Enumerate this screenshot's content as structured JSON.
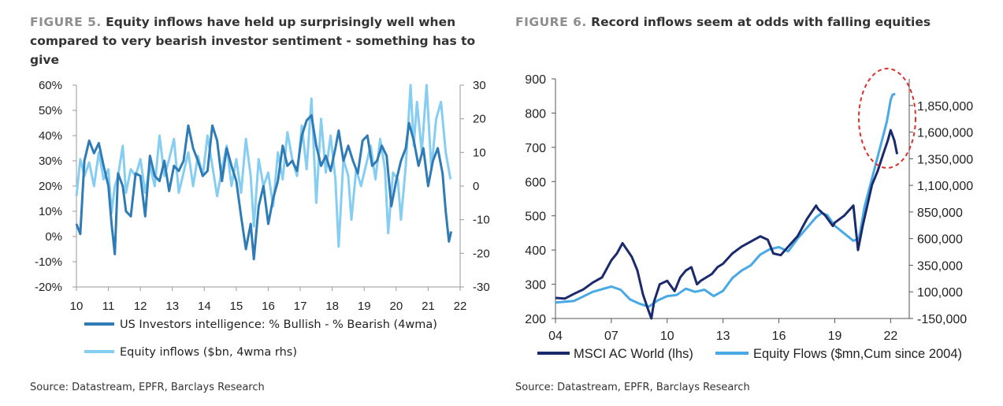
{
  "figure5": {
    "title_num": "FIGURE 5.",
    "title_line1": "Equity inflows have held up surprisingly well when",
    "title_line2": "compared to very bearish investor sentiment - something has to give",
    "source": "Source: Datastream, EPFR, Barclays Research"
  },
  "figure6": {
    "title_num": "FIGURE 6.",
    "title_text": "Record inflows seem at odds with falling equities",
    "source": "Source: Datastream, EPFR, Barclays Research"
  },
  "chart_data": [
    {
      "type": "line",
      "title": "Equity inflows have held up surprisingly well when compared to very bearish investor sentiment - something has to give",
      "x_tick_labels": [
        "10",
        "11",
        "12",
        "13",
        "14",
        "15",
        "16",
        "17",
        "18",
        "19",
        "20",
        "21",
        "22"
      ],
      "xlim": [
        2010,
        2022
      ],
      "y_left_tick_labels": [
        "60%",
        "50%",
        "40%",
        "30%",
        "20%",
        "10%",
        "0%",
        "-10%",
        "-20%"
      ],
      "y_left_lim": [
        -20,
        60
      ],
      "y_right_tick_labels": [
        "30",
        "20",
        "10",
        "0",
        "-10",
        "-20",
        "-30"
      ],
      "y_right_lim": [
        -30,
        30
      ],
      "colors": {
        "bullish_bearish": "#2e7bb6",
        "inflows": "#86cdf2"
      },
      "series": [
        {
          "name": "US Investors intelligence: % Bullish - % Bearish (4wma)",
          "axis": "left",
          "x": [
            2010.0,
            2010.12,
            2010.25,
            2010.4,
            2010.55,
            2010.7,
            2010.85,
            2011.0,
            2011.1,
            2011.2,
            2011.3,
            2011.45,
            2011.55,
            2011.7,
            2011.85,
            2012.0,
            2012.15,
            2012.3,
            2012.45,
            2012.6,
            2012.75,
            2012.9,
            2013.05,
            2013.2,
            2013.35,
            2013.5,
            2013.65,
            2013.8,
            2013.95,
            2014.1,
            2014.25,
            2014.4,
            2014.55,
            2014.7,
            2014.85,
            2015.0,
            2015.15,
            2015.3,
            2015.45,
            2015.55,
            2015.7,
            2015.85,
            2016.0,
            2016.15,
            2016.3,
            2016.45,
            2016.6,
            2016.75,
            2016.9,
            2017.05,
            2017.2,
            2017.35,
            2017.5,
            2017.65,
            2017.8,
            2017.95,
            2018.1,
            2018.2,
            2018.35,
            2018.5,
            2018.65,
            2018.8,
            2018.95,
            2019.1,
            2019.25,
            2019.4,
            2019.55,
            2019.7,
            2019.85,
            2020.0,
            2020.15,
            2020.3,
            2020.4,
            2020.55,
            2020.7,
            2020.85,
            2021.0,
            2021.15,
            2021.3,
            2021.45,
            2021.55,
            2021.65,
            2021.72
          ],
          "values": [
            5,
            1,
            30,
            38,
            33,
            37,
            28,
            20,
            5,
            -7,
            25,
            20,
            10,
            8,
            25,
            24,
            8,
            32,
            24,
            22,
            30,
            18,
            28,
            26,
            30,
            44,
            35,
            30,
            24,
            26,
            44,
            38,
            22,
            35,
            28,
            22,
            8,
            -5,
            5,
            -9,
            12,
            20,
            5,
            15,
            22,
            36,
            28,
            30,
            26,
            40,
            46,
            48,
            36,
            28,
            32,
            26,
            35,
            42,
            30,
            36,
            30,
            25,
            38,
            40,
            28,
            30,
            36,
            32,
            12,
            22,
            30,
            35,
            45,
            38,
            28,
            35,
            20,
            30,
            35,
            25,
            10,
            -2,
            2
          ]
        },
        {
          "name": "Equity inflows ($bn, 4wma rhs)",
          "axis": "right",
          "x": [
            2010.0,
            2010.12,
            2010.25,
            2010.4,
            2010.55,
            2010.7,
            2010.85,
            2011.0,
            2011.1,
            2011.2,
            2011.3,
            2011.45,
            2011.55,
            2011.7,
            2011.85,
            2012.0,
            2012.15,
            2012.3,
            2012.45,
            2012.6,
            2012.75,
            2012.9,
            2013.05,
            2013.2,
            2013.35,
            2013.5,
            2013.65,
            2013.8,
            2013.95,
            2014.1,
            2014.25,
            2014.4,
            2014.55,
            2014.7,
            2014.85,
            2015.0,
            2015.15,
            2015.3,
            2015.45,
            2015.55,
            2015.7,
            2015.85,
            2016.0,
            2016.15,
            2016.3,
            2016.45,
            2016.6,
            2016.75,
            2016.9,
            2017.05,
            2017.2,
            2017.35,
            2017.5,
            2017.65,
            2017.8,
            2017.95,
            2018.1,
            2018.2,
            2018.35,
            2018.5,
            2018.6,
            2018.75,
            2018.9,
            2019.05,
            2019.2,
            2019.35,
            2019.5,
            2019.65,
            2019.75,
            2019.9,
            2020.05,
            2020.15,
            2020.3,
            2020.45,
            2020.55,
            2020.65,
            2020.8,
            2020.95,
            2021.1,
            2021.25,
            2021.4,
            2021.55,
            2021.7
          ],
          "values": [
            -3,
            8,
            3,
            7,
            0,
            10,
            2,
            5,
            -8,
            0,
            3,
            12,
            -2,
            5,
            3,
            8,
            -2,
            6,
            0,
            15,
            3,
            8,
            14,
            -2,
            4,
            10,
            0,
            9,
            3,
            15,
            6,
            -3,
            5,
            12,
            0,
            8,
            -2,
            14,
            3,
            -12,
            8,
            0,
            4,
            -6,
            10,
            2,
            16,
            8,
            3,
            18,
            5,
            26,
            -5,
            20,
            4,
            15,
            2,
            -18,
            8,
            3,
            -10,
            5,
            0,
            6,
            12,
            2,
            14,
            5,
            -14,
            4,
            2,
            -10,
            6,
            30,
            12,
            25,
            10,
            30,
            5,
            20,
            25,
            10,
            2
          ]
        }
      ]
    },
    {
      "type": "line",
      "title": "Record inflows seem at odds with falling equities",
      "x_tick_labels": [
        "04",
        "07",
        "10",
        "13",
        "16",
        "19",
        "22"
      ],
      "xlim": [
        2004,
        2023
      ],
      "y_left_tick_labels": [
        "900",
        "800",
        "700",
        "600",
        "500",
        "400",
        "300",
        "200"
      ],
      "y_left_lim": [
        200,
        900
      ],
      "y_right_tick_labels": [
        "1,850,000",
        "1,600,000",
        "1,350,000",
        "1,100,000",
        "850,000",
        "600,000",
        "350,000",
        "100,000",
        "-150,000"
      ],
      "y_right_lim": [
        -150000,
        2100000
      ],
      "annotation": "dashed red ellipse around 2021-2022 peak",
      "colors": {
        "msci": "#1a2a6c",
        "flows": "#48a9e4",
        "annotation": "#d9312b"
      },
      "series": [
        {
          "name": "MSCI AC World (lhs)",
          "axis": "left",
          "x": [
            2004.0,
            2004.5,
            2005.0,
            2005.5,
            2006.0,
            2006.5,
            2007.0,
            2007.3,
            2007.6,
            2007.85,
            2008.1,
            2008.4,
            2008.7,
            2008.95,
            2009.15,
            2009.3,
            2009.6,
            2010.0,
            2010.4,
            2010.7,
            2011.0,
            2011.3,
            2011.6,
            2011.8,
            2012.1,
            2012.4,
            2012.7,
            2013.0,
            2013.5,
            2014.0,
            2014.5,
            2015.0,
            2015.4,
            2015.7,
            2016.1,
            2016.5,
            2017.0,
            2017.5,
            2018.0,
            2018.1,
            2018.5,
            2018.9,
            2019.0,
            2019.5,
            2020.0,
            2020.15,
            2020.25,
            2020.5,
            2020.75,
            2021.0,
            2021.3,
            2021.6,
            2021.85,
            2022.0,
            2022.2,
            2022.35
          ],
          "values": [
            260,
            258,
            272,
            285,
            305,
            320,
            370,
            390,
            420,
            400,
            380,
            340,
            270,
            230,
            200,
            250,
            300,
            310,
            280,
            320,
            340,
            350,
            300,
            310,
            320,
            330,
            350,
            360,
            390,
            410,
            425,
            440,
            430,
            390,
            385,
            410,
            440,
            490,
            530,
            520,
            500,
            470,
            480,
            500,
            530,
            450,
            400,
            470,
            530,
            590,
            630,
            680,
            720,
            750,
            720,
            680
          ]
        },
        {
          "name": "Equity Flows ($mn,Cum since 2004)",
          "axis": "right",
          "x": [
            2004.0,
            2005.0,
            2006.0,
            2007.0,
            2007.5,
            2008.0,
            2008.5,
            2009.0,
            2009.5,
            2010.0,
            2010.5,
            2011.0,
            2011.5,
            2012.0,
            2012.5,
            2013.0,
            2013.5,
            2014.0,
            2014.5,
            2015.0,
            2015.5,
            2016.0,
            2016.5,
            2017.0,
            2017.5,
            2018.0,
            2018.3,
            2018.6,
            2019.0,
            2019.5,
            2020.0,
            2020.3,
            2020.6,
            2020.9,
            2021.2,
            2021.5,
            2021.8,
            2022.0,
            2022.1,
            2022.25
          ],
          "values": [
            0,
            15000,
            100000,
            150000,
            120000,
            30000,
            -10000,
            -40000,
            20000,
            60000,
            70000,
            130000,
            100000,
            120000,
            60000,
            110000,
            230000,
            300000,
            350000,
            450000,
            500000,
            520000,
            480000,
            600000,
            700000,
            800000,
            840000,
            820000,
            720000,
            650000,
            580000,
            600000,
            900000,
            1100000,
            1300000,
            1500000,
            1700000,
            1900000,
            1950000,
            1960000
          ]
        }
      ]
    }
  ]
}
